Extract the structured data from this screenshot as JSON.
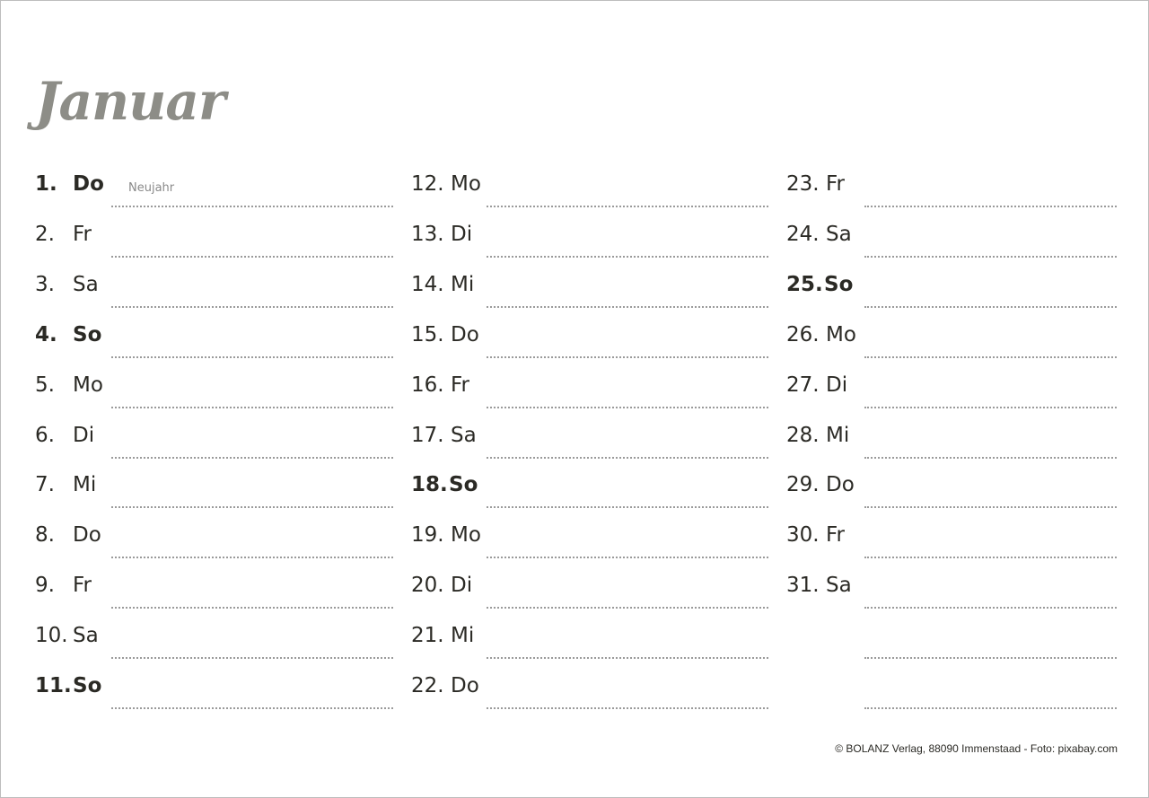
{
  "title": "Januar",
  "columns": [
    [
      {
        "num": "1.",
        "dow": "Do",
        "bold": true,
        "note": "Neujahr"
      },
      {
        "num": "2.",
        "dow": "Fr"
      },
      {
        "num": "3.",
        "dow": "Sa"
      },
      {
        "num": "4.",
        "dow": "So",
        "bold": true
      },
      {
        "num": "5.",
        "dow": "Mo"
      },
      {
        "num": "6.",
        "dow": "Di"
      },
      {
        "num": "7.",
        "dow": "Mi"
      },
      {
        "num": "8.",
        "dow": "Do"
      },
      {
        "num": "9.",
        "dow": "Fr"
      },
      {
        "num": "10.",
        "dow": "Sa"
      },
      {
        "num": "11.",
        "dow": "So",
        "bold": true
      }
    ],
    [
      {
        "num": "12.",
        "dow": "Mo"
      },
      {
        "num": "13.",
        "dow": "Di"
      },
      {
        "num": "14.",
        "dow": "Mi"
      },
      {
        "num": "15.",
        "dow": "Do"
      },
      {
        "num": "16.",
        "dow": "Fr"
      },
      {
        "num": "17.",
        "dow": "Sa"
      },
      {
        "num": "18.",
        "dow": "So",
        "bold": true
      },
      {
        "num": "19.",
        "dow": "Mo"
      },
      {
        "num": "20.",
        "dow": "Di"
      },
      {
        "num": "21.",
        "dow": "Mi"
      },
      {
        "num": "22.",
        "dow": "Do"
      }
    ],
    [
      {
        "num": "23.",
        "dow": "Fr"
      },
      {
        "num": "24.",
        "dow": "Sa"
      },
      {
        "num": "25.",
        "dow": "So",
        "bold": true
      },
      {
        "num": "26.",
        "dow": "Mo"
      },
      {
        "num": "27.",
        "dow": "Di"
      },
      {
        "num": "28.",
        "dow": "Mi"
      },
      {
        "num": "29.",
        "dow": "Do"
      },
      {
        "num": "30.",
        "dow": "Fr"
      },
      {
        "num": "31.",
        "dow": "Sa"
      },
      {},
      {}
    ]
  ],
  "footer": "© BOLANZ Verlag, 88090 Immenstaad - Foto: pixabay.com"
}
